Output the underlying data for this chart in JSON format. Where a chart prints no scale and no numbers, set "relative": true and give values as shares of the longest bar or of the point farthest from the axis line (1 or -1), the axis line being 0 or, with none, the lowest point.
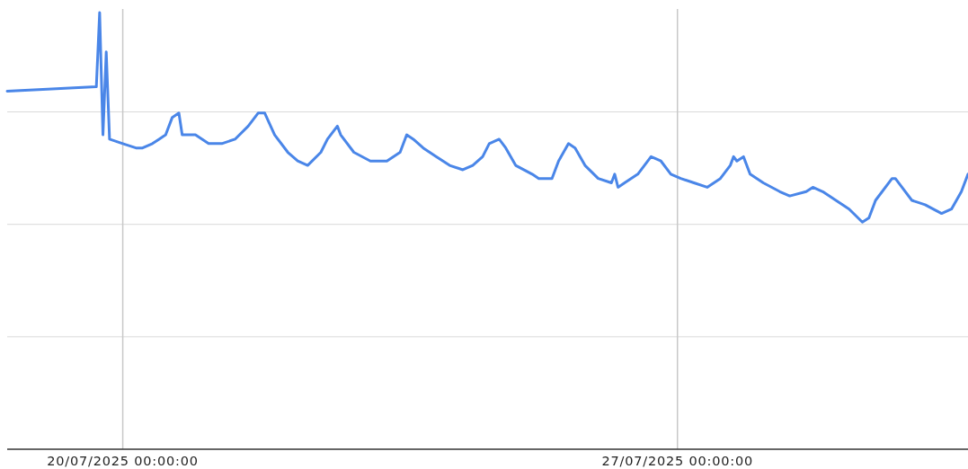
{
  "chart_data": {
    "type": "line",
    "relative": true,
    "grid": true,
    "xlim": [
      "2025-07-18T13:00",
      "2025-07-30T16:00"
    ],
    "xticks": [
      {
        "value": "2025-07-20",
        "label": "20/07/2025 00:00:00"
      },
      {
        "value": "2025-07-27",
        "label": "27/07/2025 00:00:00"
      }
    ],
    "series": [
      {
        "color": "#4a86e8",
        "x": [
          "2025-07-18T13:00",
          "2025-07-19T16:00",
          "2025-07-19T17:00",
          "2025-07-19T18:00",
          "2025-07-19T19:00",
          "2025-07-19T20:00",
          "2025-07-20T00:00",
          "2025-07-20T04:00",
          "2025-07-20T06:00",
          "2025-07-20T09:00",
          "2025-07-20T11:00",
          "2025-07-20T13:00",
          "2025-07-20T15:00",
          "2025-07-20T17:00",
          "2025-07-20T18:00",
          "2025-07-20T22:00",
          "2025-07-21T02:00",
          "2025-07-21T06:00",
          "2025-07-21T10:00",
          "2025-07-21T14:00",
          "2025-07-21T17:00",
          "2025-07-21T19:00",
          "2025-07-21T22:00",
          "2025-07-22T02:00",
          "2025-07-22T05:00",
          "2025-07-22T08:00",
          "2025-07-22T12:00",
          "2025-07-22T14:00",
          "2025-07-22T17:00",
          "2025-07-22T18:00",
          "2025-07-22T22:00",
          "2025-07-23T03:00",
          "2025-07-23T08:00",
          "2025-07-23T12:00",
          "2025-07-23T14:00",
          "2025-07-23T16:00",
          "2025-07-23T19:00",
          "2025-07-23T23:00",
          "2025-07-24T03:00",
          "2025-07-24T07:00",
          "2025-07-24T10:00",
          "2025-07-24T13:00",
          "2025-07-24T15:00",
          "2025-07-24T18:00",
          "2025-07-24T20:00",
          "2025-07-24T23:00",
          "2025-07-25T04:00",
          "2025-07-25T06:00",
          "2025-07-25T10:00",
          "2025-07-25T12:00",
          "2025-07-25T15:00",
          "2025-07-25T17:00",
          "2025-07-25T20:00",
          "2025-07-26T00:00",
          "2025-07-26T04:00",
          "2025-07-26T05:00",
          "2025-07-26T06:00",
          "2025-07-26T08:00",
          "2025-07-26T12:00",
          "2025-07-26T16:00",
          "2025-07-26T19:00",
          "2025-07-26T22:00",
          "2025-07-27T01:00",
          "2025-07-27T05:00",
          "2025-07-27T09:00",
          "2025-07-27T13:00",
          "2025-07-27T16:00",
          "2025-07-27T17:00",
          "2025-07-27T18:00",
          "2025-07-27T20:00",
          "2025-07-27T22:00",
          "2025-07-28T02:00",
          "2025-07-28T07:00",
          "2025-07-28T10:00",
          "2025-07-28T15:00",
          "2025-07-28T17:00",
          "2025-07-28T20:00",
          "2025-07-29T00:00",
          "2025-07-29T04:00",
          "2025-07-29T08:00",
          "2025-07-29T10:00",
          "2025-07-29T12:00",
          "2025-07-29T17:00",
          "2025-07-29T18:00",
          "2025-07-29T20:00",
          "2025-07-29T23:00",
          "2025-07-30T03:00",
          "2025-07-30T08:00",
          "2025-07-30T11:00",
          "2025-07-30T14:00",
          "2025-07-30T16:00"
        ],
        "values": [
          0.82,
          0.83,
          1,
          0.72,
          0.91,
          0.71,
          0.7,
          0.69,
          0.69,
          0.7,
          0.71,
          0.72,
          0.76,
          0.77,
          0.72,
          0.72,
          0.7,
          0.7,
          0.71,
          0.74,
          0.77,
          0.77,
          0.72,
          0.68,
          0.66,
          0.65,
          0.68,
          0.71,
          0.74,
          0.72,
          0.68,
          0.66,
          0.66,
          0.68,
          0.72,
          0.71,
          0.69,
          0.67,
          0.65,
          0.64,
          0.65,
          0.67,
          0.7,
          0.71,
          0.69,
          0.65,
          0.63,
          0.62,
          0.62,
          0.66,
          0.7,
          0.69,
          0.65,
          0.62,
          0.61,
          0.63,
          0.6,
          0.61,
          0.63,
          0.67,
          0.66,
          0.63,
          0.62,
          0.61,
          0.6,
          0.62,
          0.65,
          0.67,
          0.66,
          0.67,
          0.63,
          0.61,
          0.59,
          0.58,
          0.59,
          0.6,
          0.59,
          0.57,
          0.55,
          0.52,
          0.53,
          0.57,
          0.62,
          0.62,
          0.6,
          0.57,
          0.56,
          0.54,
          0.55,
          0.59,
          0.63
        ]
      }
    ]
  }
}
